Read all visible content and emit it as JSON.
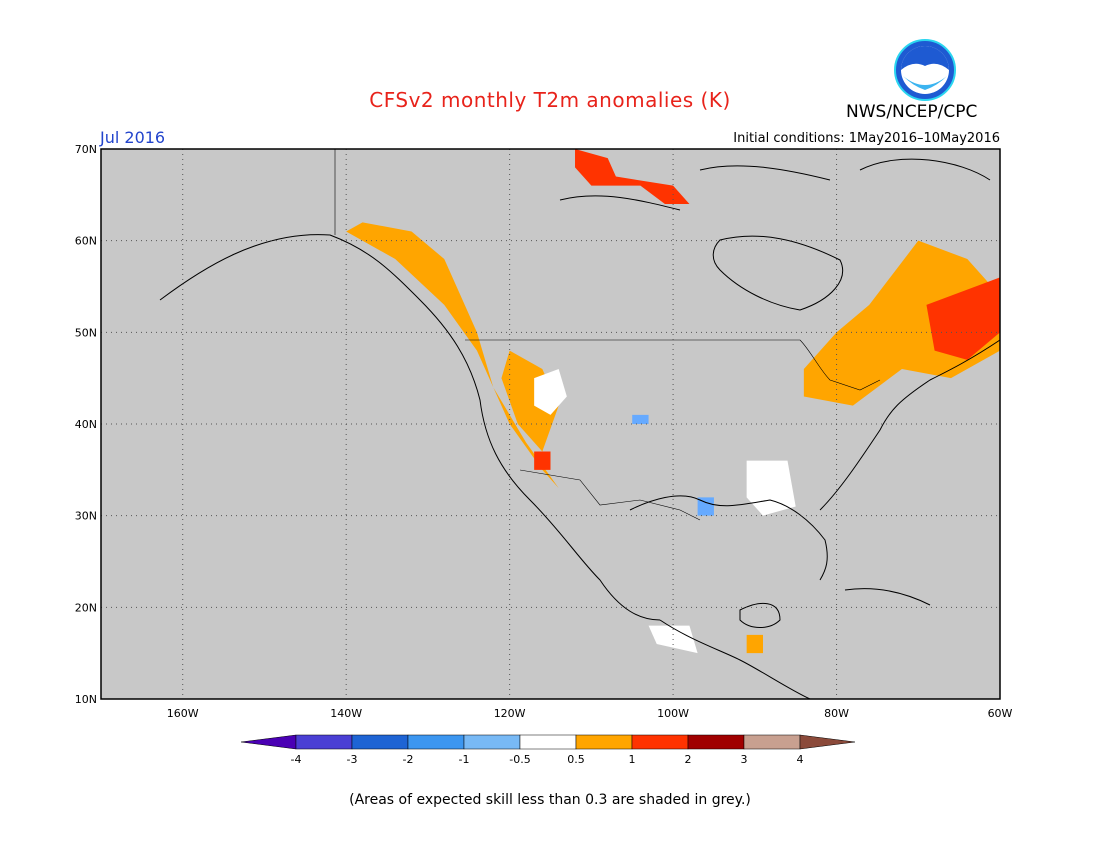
{
  "header": {
    "title": "CFSv2 monthly T2m anomalies (K)",
    "title_color": "#e8231b",
    "org": "NWS/NCEP/CPC",
    "month": "Jul 2016",
    "month_color": "#2244cc",
    "initial_conditions": "Initial conditions: 1May2016–10May2016"
  },
  "footnote": "(Areas of expected skill less than 0.3 are shaded in grey.)",
  "map": {
    "lon_range": [
      -170,
      -60
    ],
    "lat_range": [
      10,
      70
    ],
    "lat_labels": [
      "70N",
      "60N",
      "50N",
      "40N",
      "30N",
      "20N",
      "10N"
    ],
    "lon_labels": [
      "160W",
      "140W",
      "120W",
      "100W",
      "80W",
      "60W"
    ],
    "low_skill_color": "#c8c8c8",
    "regions": [
      {
        "name": "warm-anomaly",
        "color": "#ffa500",
        "lonlat": [
          [
            -138,
            62
          ],
          [
            -132,
            61
          ],
          [
            -128,
            58
          ],
          [
            -126,
            54
          ],
          [
            -124,
            50
          ],
          [
            -122,
            44
          ],
          [
            -118,
            38
          ],
          [
            -114,
            33
          ],
          [
            -116,
            35
          ],
          [
            -120,
            40
          ],
          [
            -124,
            48
          ],
          [
            -128,
            53
          ],
          [
            -134,
            58
          ],
          [
            -140,
            61
          ]
        ]
      },
      {
        "name": "warm-anomaly",
        "color": "#ffa500",
        "lonlat": [
          [
            -120,
            48
          ],
          [
            -116,
            46
          ],
          [
            -114,
            42
          ],
          [
            -116,
            37
          ],
          [
            -119,
            40
          ],
          [
            -121,
            45
          ]
        ]
      },
      {
        "name": "warm-anomaly",
        "color": "#ffa500",
        "lonlat": [
          [
            -84,
            46
          ],
          [
            -80,
            50
          ],
          [
            -76,
            53
          ],
          [
            -70,
            60
          ],
          [
            -64,
            58
          ],
          [
            -60,
            54
          ],
          [
            -60,
            48
          ],
          [
            -66,
            45
          ],
          [
            -72,
            46
          ],
          [
            -78,
            42
          ],
          [
            -84,
            43
          ]
        ]
      },
      {
        "name": "warm-anomaly",
        "color": "#ffa500",
        "lonlat": [
          [
            -91,
            17
          ],
          [
            -89,
            17
          ],
          [
            -89,
            15
          ],
          [
            -91,
            15
          ]
        ]
      },
      {
        "name": "strong-warm-anomaly",
        "color": "#ff3300",
        "lonlat": [
          [
            -69,
            53
          ],
          [
            -60,
            56
          ],
          [
            -60,
            50
          ],
          [
            -64,
            47
          ],
          [
            -68,
            48
          ]
        ]
      },
      {
        "name": "strong-warm-anomaly",
        "color": "#ff3300",
        "lonlat": [
          [
            -112,
            70
          ],
          [
            -108,
            69
          ],
          [
            -107,
            67
          ],
          [
            -100,
            66
          ],
          [
            -98,
            64
          ],
          [
            -101,
            64
          ],
          [
            -104,
            66
          ],
          [
            -110,
            66
          ],
          [
            -112,
            68
          ]
        ]
      },
      {
        "name": "strong-warm-anomaly",
        "color": "#ff3300",
        "lonlat": [
          [
            -117,
            37
          ],
          [
            -115,
            37
          ],
          [
            -115,
            35
          ],
          [
            -117,
            35
          ]
        ]
      },
      {
        "name": "near-normal",
        "color": "#ffffff",
        "lonlat": [
          [
            -117,
            45
          ],
          [
            -114,
            46
          ],
          [
            -113,
            43
          ],
          [
            -115,
            41
          ],
          [
            -117,
            42
          ]
        ]
      },
      {
        "name": "near-normal",
        "color": "#ffffff",
        "lonlat": [
          [
            -103,
            18
          ],
          [
            -98,
            18
          ],
          [
            -97,
            15
          ],
          [
            -102,
            16
          ]
        ]
      },
      {
        "name": "near-normal",
        "color": "#ffffff",
        "lonlat": [
          [
            -91,
            36
          ],
          [
            -86,
            36
          ],
          [
            -85,
            31
          ],
          [
            -89,
            30
          ],
          [
            -91,
            32
          ]
        ]
      },
      {
        "name": "cool-anomaly",
        "color": "#66aaff",
        "lonlat": [
          [
            -97,
            32
          ],
          [
            -95,
            32
          ],
          [
            -95,
            30
          ],
          [
            -97,
            30
          ]
        ]
      },
      {
        "name": "cool-anomaly",
        "color": "#66aaff",
        "lonlat": [
          [
            -105,
            41
          ],
          [
            -103,
            41
          ],
          [
            -103,
            40
          ],
          [
            -105,
            40
          ]
        ]
      }
    ]
  },
  "colorbar": {
    "colors": [
      "#4a00b4",
      "#4a3fd4",
      "#1e64d4",
      "#3c96f0",
      "#78b9f5",
      "#ffffff",
      "#ffa500",
      "#ff3300",
      "#a00000",
      "#c8a090",
      "#8b4a3a"
    ],
    "labels": [
      "-4",
      "-3",
      "-2",
      "-1",
      "-0.5",
      "0.5",
      "1",
      "2",
      "3",
      "4"
    ]
  }
}
